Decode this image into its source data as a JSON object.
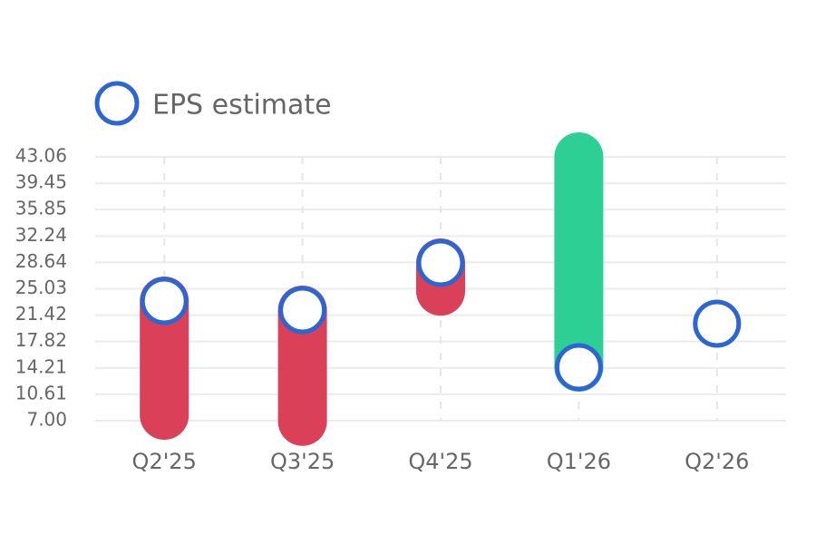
{
  "chart_data": {
    "type": "range-dot",
    "categories": [
      "Q2'25",
      "Q3'25",
      "Q4'25",
      "Q1'26",
      "Q2'26"
    ],
    "series": [
      {
        "name": "EPS estimate",
        "color": "#2e66d1",
        "values": [
          23.36,
          22.12,
          28.56,
          14.31,
          20.26
        ]
      }
    ],
    "actuals": [
      7.74,
      6.9,
      24.7,
      43.06,
      null
    ],
    "beat_color": "#2dcf95",
    "miss_color": "#da4057",
    "ylim": [
      7,
      43.06
    ],
    "yticks": [
      {
        "value": 7,
        "label": "7.00"
      },
      10.61,
      14.21,
      17.82,
      21.42,
      25.03,
      28.64,
      32.24,
      35.85,
      39.45,
      43.06
    ],
    "grid": true
  }
}
